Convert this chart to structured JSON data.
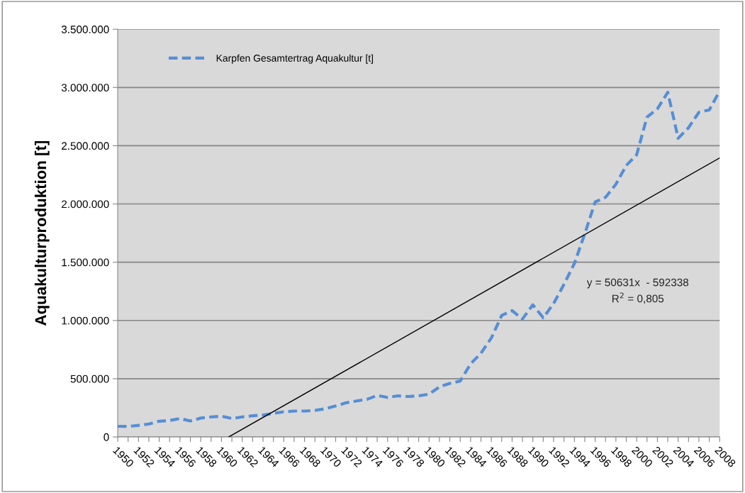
{
  "chart_data": {
    "type": "line",
    "ylabel": "Aquakulturproduktion [t]",
    "x": [
      1950,
      1951,
      1952,
      1953,
      1954,
      1955,
      1956,
      1957,
      1958,
      1959,
      1960,
      1961,
      1962,
      1963,
      1964,
      1965,
      1966,
      1967,
      1968,
      1969,
      1970,
      1971,
      1972,
      1973,
      1974,
      1975,
      1976,
      1977,
      1978,
      1979,
      1980,
      1981,
      1982,
      1983,
      1984,
      1985,
      1986,
      1987,
      1988,
      1989,
      1990,
      1991,
      1992,
      1993,
      1994,
      1995,
      1996,
      1997,
      1998,
      1999,
      2000,
      2001,
      2002,
      2003,
      2004,
      2005,
      2006,
      2007,
      2008
    ],
    "series": [
      {
        "name": "Karpfen Gesamtertrag Aquakultur [t]",
        "color": "#558ed5",
        "line_style": "dashed",
        "values": [
          91000,
          90000,
          100000,
          111000,
          135000,
          141000,
          158000,
          137000,
          162000,
          172000,
          178000,
          158000,
          172000,
          182000,
          188000,
          202000,
          216000,
          222000,
          222000,
          228000,
          242000,
          266000,
          293000,
          309000,
          322000,
          357000,
          339000,
          353000,
          347000,
          353000,
          367000,
          430000,
          460000,
          480000,
          627000,
          719000,
          850000,
          1043000,
          1084000,
          1013000,
          1134000,
          1023000,
          1145000,
          1310000,
          1489000,
          1743000,
          2017000,
          2057000,
          2169000,
          2331000,
          2422000,
          2746000,
          2817000,
          2959000,
          2564000,
          2655000,
          2787000,
          2807000,
          2970000
        ]
      },
      {
        "type": "line",
        "color": "#000000",
        "line_style": "solid",
        "x": [
          1960.7,
          2008
        ],
        "values": [
          0,
          2395000
        ]
      }
    ],
    "xlim": [
      1950,
      2008
    ],
    "xticks": [
      1950,
      {
        "value": 1951,
        "label": null
      },
      1952,
      {
        "value": 1953,
        "label": null
      },
      1954,
      {
        "value": 1955,
        "label": null
      },
      1956,
      {
        "value": 1957,
        "label": null
      },
      1958,
      {
        "value": 1959,
        "label": null
      },
      1960,
      {
        "value": 1961,
        "label": null
      },
      1962,
      {
        "value": 1963,
        "label": null
      },
      1964,
      {
        "value": 1965,
        "label": null
      },
      1966,
      {
        "value": 1967,
        "label": null
      },
      1968,
      {
        "value": 1969,
        "label": null
      },
      1970,
      {
        "value": 1971,
        "label": null
      },
      1972,
      {
        "value": 1973,
        "label": null
      },
      1974,
      {
        "value": 1975,
        "label": null
      },
      1976,
      {
        "value": 1977,
        "label": null
      },
      1978,
      {
        "value": 1979,
        "label": null
      },
      1980,
      {
        "value": 1981,
        "label": null
      },
      1982,
      {
        "value": 1983,
        "label": null
      },
      1984,
      {
        "value": 1985,
        "label": null
      },
      1986,
      {
        "value": 1987,
        "label": null
      },
      1988,
      {
        "value": 1989,
        "label": null
      },
      1990,
      {
        "value": 1991,
        "label": null
      },
      1992,
      {
        "value": 1993,
        "label": null
      },
      1994,
      {
        "value": 1995,
        "label": null
      },
      1996,
      {
        "value": 1997,
        "label": null
      },
      1998,
      {
        "value": 1999,
        "label": null
      },
      2000,
      {
        "value": 2001,
        "label": null
      },
      2002,
      {
        "value": 2003,
        "label": null
      },
      2004,
      {
        "value": 2005,
        "label": null
      },
      2006,
      {
        "value": 2007,
        "label": null
      },
      2008
    ],
    "ylim": [
      0,
      3500000
    ],
    "yticks": [
      0,
      {
        "value": 500000,
        "label": "500.000"
      },
      {
        "value": 1000000,
        "label": "1.000.000"
      },
      {
        "value": 1500000,
        "label": "1.500.000"
      },
      {
        "value": 2000000,
        "label": "2.000.000"
      },
      {
        "value": 2500000,
        "label": "2.500.000"
      },
      {
        "value": 3000000,
        "label": "3.000.000"
      },
      {
        "value": 3500000,
        "label": "3.500.000"
      }
    ],
    "annotations": [
      "y = 50631x  - 592338",
      "R$^{2}$ = 0,805"
    ],
    "grid": "y",
    "legend": "top left",
    "marker": "none"
  }
}
